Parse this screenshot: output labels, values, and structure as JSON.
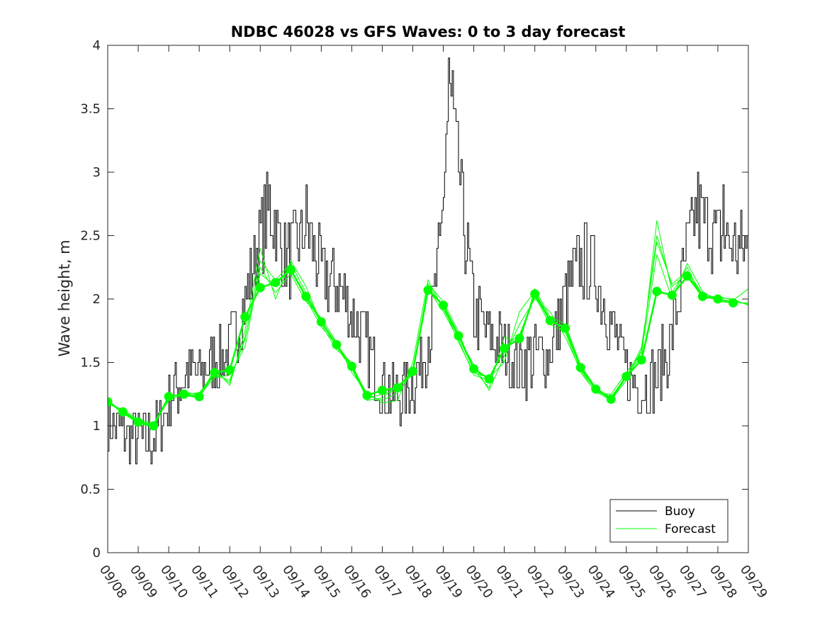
{
  "chart_data": {
    "type": "line",
    "title": "NDBC 46028 vs GFS Waves: 0 to 3 day forecast",
    "xlabel": "",
    "ylabel": "Wave height, m",
    "ylim": [
      0,
      4
    ],
    "yticks": [
      0,
      0.5,
      1,
      1.5,
      2,
      2.5,
      3,
      3.5,
      4
    ],
    "ytick_labels": [
      "0",
      "0.5",
      "1",
      "1.5",
      "2",
      "2.5",
      "3",
      "3.5",
      "4"
    ],
    "xlim_days": [
      0,
      21
    ],
    "xtick_labels": [
      "09/08",
      "09/09",
      "09/10",
      "09/11",
      "09/12",
      "09/13",
      "09/14",
      "09/15",
      "09/16",
      "09/17",
      "09/18",
      "09/19",
      "09/20",
      "09/21",
      "09/22",
      "09/23",
      "09/24",
      "09/25",
      "09/26",
      "09/27",
      "09/28",
      "09/29"
    ],
    "legend": {
      "position": "bottom-right",
      "entries": [
        "Buoy",
        "Forecast"
      ]
    },
    "colors": {
      "buoy": "#000000",
      "forecast": "#00ff00",
      "axis": "#262626"
    },
    "buoy_envelope": {
      "x_days": [
        0,
        0.3,
        0.6,
        1.0,
        1.5,
        2.0,
        2.5,
        3.0,
        3.5,
        4.0,
        4.5,
        5.0,
        5.3,
        5.5,
        5.8,
        6.2,
        6.5,
        7.0,
        7.5,
        8.0,
        8.5,
        9.0,
        9.5,
        10.0,
        10.3,
        10.6,
        10.9,
        11.0,
        11.15,
        11.3,
        11.5,
        11.7,
        12.0,
        12.5,
        13.0,
        13.5,
        14.0,
        14.5,
        15.0,
        15.5,
        16.0,
        16.5,
        17.0,
        17.5,
        18.0,
        18.5,
        19.0,
        19.3,
        19.6,
        20.0,
        20.3,
        20.6,
        21.0
      ],
      "y_m": [
        1.0,
        1.0,
        0.95,
        0.9,
        0.9,
        1.2,
        1.4,
        1.4,
        1.5,
        1.6,
        2.0,
        2.5,
        2.7,
        2.6,
        2.3,
        2.4,
        2.6,
        2.2,
        2.1,
        1.9,
        1.6,
        1.3,
        1.25,
        1.35,
        1.5,
        1.8,
        2.4,
        2.9,
        3.55,
        3.4,
        3.0,
        2.5,
        1.9,
        1.7,
        1.6,
        1.45,
        1.55,
        1.6,
        2.0,
        2.3,
        2.2,
        1.8,
        1.4,
        1.3,
        1.4,
        1.7,
        2.4,
        2.7,
        2.6,
        2.5,
        2.45,
        2.4,
        2.4
      ]
    },
    "buoy_peaks": [
      {
        "x_day": 5.3,
        "y_m": 2.9
      },
      {
        "x_day": 11.15,
        "y_m": 3.9
      },
      {
        "x_day": 11.3,
        "y_m": 3.8
      },
      {
        "x_day": 19.35,
        "y_m": 3.0
      },
      {
        "x_day": 20.15,
        "y_m": 2.9
      }
    ],
    "forecast_points": {
      "x_days": [
        0,
        0.5,
        1.0,
        1.5,
        2.0,
        2.5,
        3.0,
        3.5,
        4.0,
        4.5,
        5.0,
        5.5,
        6.0,
        6.5,
        7.0,
        7.5,
        8.0,
        8.5,
        9.0,
        9.5,
        10.0,
        10.5,
        11.0,
        11.5,
        12.0,
        12.5,
        13.0,
        13.5,
        14.0,
        14.5,
        15.0,
        15.5,
        16.0,
        16.5,
        17.0,
        17.5,
        18.0,
        18.5,
        19.0,
        19.5,
        20.0,
        20.5
      ],
      "y_m": [
        1.19,
        1.11,
        1.03,
        1.0,
        1.23,
        1.25,
        1.23,
        1.42,
        1.44,
        1.86,
        2.09,
        2.13,
        2.23,
        2.02,
        1.82,
        1.64,
        1.47,
        1.24,
        1.28,
        1.3,
        1.43,
        2.07,
        1.95,
        1.71,
        1.45,
        1.37,
        1.61,
        1.69,
        2.04,
        1.83,
        1.77,
        1.46,
        1.29,
        1.21,
        1.39,
        1.52,
        2.06,
        2.03,
        2.18,
        2.02,
        2.0,
        1.97
      ]
    },
    "forecast_members": [
      {
        "x_days": [
          0,
          0.5,
          1.0,
          1.5,
          2.0,
          2.5,
          3.0,
          3.5,
          4.0,
          4.5,
          5.0,
          5.5,
          6.0,
          6.5,
          7.0,
          7.5,
          8.0,
          8.5,
          9.0,
          9.5,
          10.0,
          10.5,
          11.0,
          11.5,
          12.0,
          12.5,
          13.0,
          13.5,
          14.0,
          14.5,
          15.0,
          15.5,
          16.0,
          16.5,
          17.0,
          17.5,
          18.0,
          18.5,
          19.0,
          19.5,
          20.0,
          20.5,
          21.0
        ],
        "y_m": [
          1.18,
          1.12,
          1.04,
          1.01,
          1.22,
          1.26,
          1.25,
          1.4,
          1.36,
          1.68,
          2.3,
          2.15,
          2.28,
          2.05,
          1.83,
          1.62,
          1.45,
          1.22,
          1.25,
          1.28,
          1.45,
          2.08,
          1.9,
          1.68,
          1.4,
          1.36,
          1.62,
          1.72,
          2.02,
          1.8,
          1.74,
          1.42,
          1.27,
          1.2,
          1.36,
          1.6,
          2.5,
          2.1,
          2.2,
          2.03,
          2.0,
          1.98,
          1.96
        ]
      },
      {
        "x_days": [
          0,
          0.5,
          1.0,
          1.5,
          2.0,
          2.5,
          3.0,
          3.5,
          4.0,
          4.5,
          5.0,
          5.5,
          6.0,
          6.5,
          7.0,
          7.5,
          8.0,
          8.5,
          9.0,
          9.5,
          10.0,
          10.5,
          11.0,
          11.5,
          12.0,
          12.5,
          13.0,
          13.5,
          14.0,
          14.5,
          15.0,
          15.5,
          16.0,
          16.5,
          17.0,
          17.5,
          18.0,
          18.5,
          19.0,
          19.5,
          20.0,
          20.5,
          21.0
        ],
        "y_m": [
          1.19,
          1.1,
          1.02,
          0.99,
          1.24,
          1.24,
          1.22,
          1.45,
          1.32,
          1.75,
          2.4,
          2.0,
          2.3,
          2.1,
          1.8,
          1.6,
          1.5,
          1.2,
          1.22,
          1.32,
          1.4,
          2.12,
          1.98,
          1.74,
          1.44,
          1.3,
          1.7,
          1.65,
          2.08,
          1.86,
          1.8,
          1.48,
          1.3,
          1.22,
          1.4,
          1.55,
          2.62,
          2.05,
          2.25,
          2.0,
          2.02,
          1.99,
          2.08
        ]
      },
      {
        "x_days": [
          0,
          0.5,
          1.0,
          1.5,
          2.0,
          2.5,
          3.0,
          3.5,
          4.0,
          4.5,
          5.0,
          5.5,
          6.0,
          6.5,
          7.0,
          7.5,
          8.0,
          8.5,
          9.0,
          9.5,
          10.0,
          10.5,
          11.0,
          11.5,
          12.0,
          12.5,
          13.0,
          13.5,
          14.0,
          14.5,
          15.0,
          15.5,
          16.0,
          16.5,
          17.0,
          17.5,
          18.0,
          18.5,
          19.0,
          19.5,
          20.0,
          20.5,
          21.0
        ],
        "y_m": [
          1.2,
          1.11,
          1.03,
          1.0,
          1.21,
          1.27,
          1.24,
          1.38,
          1.4,
          1.62,
          2.25,
          2.05,
          2.2,
          1.98,
          1.85,
          1.66,
          1.42,
          1.26,
          1.18,
          1.2,
          1.5,
          2.15,
          1.92,
          1.7,
          1.48,
          1.28,
          1.55,
          1.8,
          2.0,
          1.9,
          1.7,
          1.44,
          1.26,
          1.25,
          1.42,
          1.58,
          2.35,
          2.0,
          2.28,
          2.06,
          1.98,
          1.97,
          1.97
        ]
      },
      {
        "x_days": [
          0,
          0.5,
          1.0,
          1.5,
          2.0,
          2.5,
          3.0,
          3.5,
          4.0,
          4.5,
          5.0,
          5.5,
          6.0,
          6.5,
          7.0,
          7.5,
          8.0,
          8.5,
          9.0,
          9.5,
          10.0,
          10.5,
          11.0,
          11.5,
          12.0,
          12.5,
          13.0,
          13.5,
          14.0,
          14.5,
          15.0,
          15.5,
          16.0,
          16.5,
          17.0,
          17.5,
          18.0,
          18.5,
          19.0,
          19.5,
          20.0,
          20.5,
          21.0
        ],
        "y_m": [
          1.17,
          1.13,
          1.05,
          1.02,
          1.2,
          1.25,
          1.26,
          1.42,
          1.34,
          1.7,
          2.2,
          2.1,
          2.25,
          2.0,
          1.78,
          1.64,
          1.48,
          1.24,
          1.2,
          1.26,
          1.42,
          2.1,
          1.94,
          1.66,
          1.42,
          1.38,
          1.5,
          1.9,
          2.06,
          1.84,
          1.76,
          1.45,
          1.28,
          1.23,
          1.38,
          1.62,
          2.45,
          2.12,
          2.22,
          2.04,
          2.01,
          2.0,
          1.95
        ]
      }
    ]
  }
}
